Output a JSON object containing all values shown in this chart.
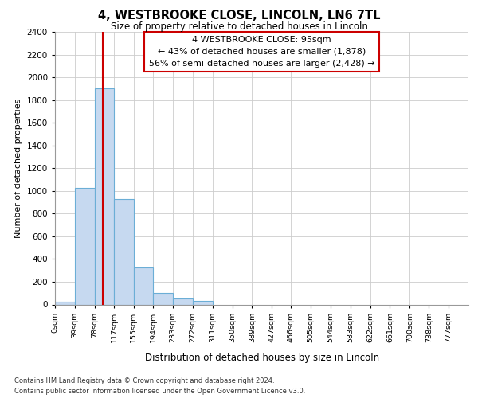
{
  "title1": "4, WESTBROOKE CLOSE, LINCOLN, LN6 7TL",
  "title2": "Size of property relative to detached houses in Lincoln",
  "xlabel": "Distribution of detached houses by size in Lincoln",
  "ylabel": "Number of detached properties",
  "bin_labels": [
    "0sqm",
    "39sqm",
    "78sqm",
    "117sqm",
    "155sqm",
    "194sqm",
    "233sqm",
    "272sqm",
    "311sqm",
    "350sqm",
    "389sqm",
    "427sqm",
    "466sqm",
    "505sqm",
    "544sqm",
    "583sqm",
    "622sqm",
    "661sqm",
    "700sqm",
    "738sqm",
    "777sqm"
  ],
  "bin_edges": [
    0,
    39,
    78,
    117,
    155,
    194,
    233,
    272,
    311,
    350,
    389,
    427,
    466,
    505,
    544,
    583,
    622,
    661,
    700,
    738,
    777
  ],
  "bar_heights": [
    25,
    1025,
    1900,
    925,
    325,
    105,
    55,
    35,
    0,
    0,
    0,
    0,
    0,
    0,
    0,
    0,
    0,
    0,
    0,
    0
  ],
  "bar_color": "#c6d9f0",
  "bar_edge_color": "#6baed6",
  "property_sqm": 95,
  "red_line_color": "#cc0000",
  "annotation_line1": "4 WESTBROOKE CLOSE: 95sqm",
  "annotation_line2": "← 43% of detached houses are smaller (1,878)",
  "annotation_line3": "56% of semi-detached houses are larger (2,428) →",
  "annotation_box_color": "#ffffff",
  "annotation_box_edge": "#cc0000",
  "ylim": [
    0,
    2400
  ],
  "yticks": [
    0,
    200,
    400,
    600,
    800,
    1000,
    1200,
    1400,
    1600,
    1800,
    2000,
    2200,
    2400
  ],
  "grid_color": "#cccccc",
  "plot_bg_color": "#ffffff",
  "fig_bg_color": "#ffffff",
  "footer1": "Contains HM Land Registry data © Crown copyright and database right 2024.",
  "footer2": "Contains public sector information licensed under the Open Government Licence v3.0."
}
